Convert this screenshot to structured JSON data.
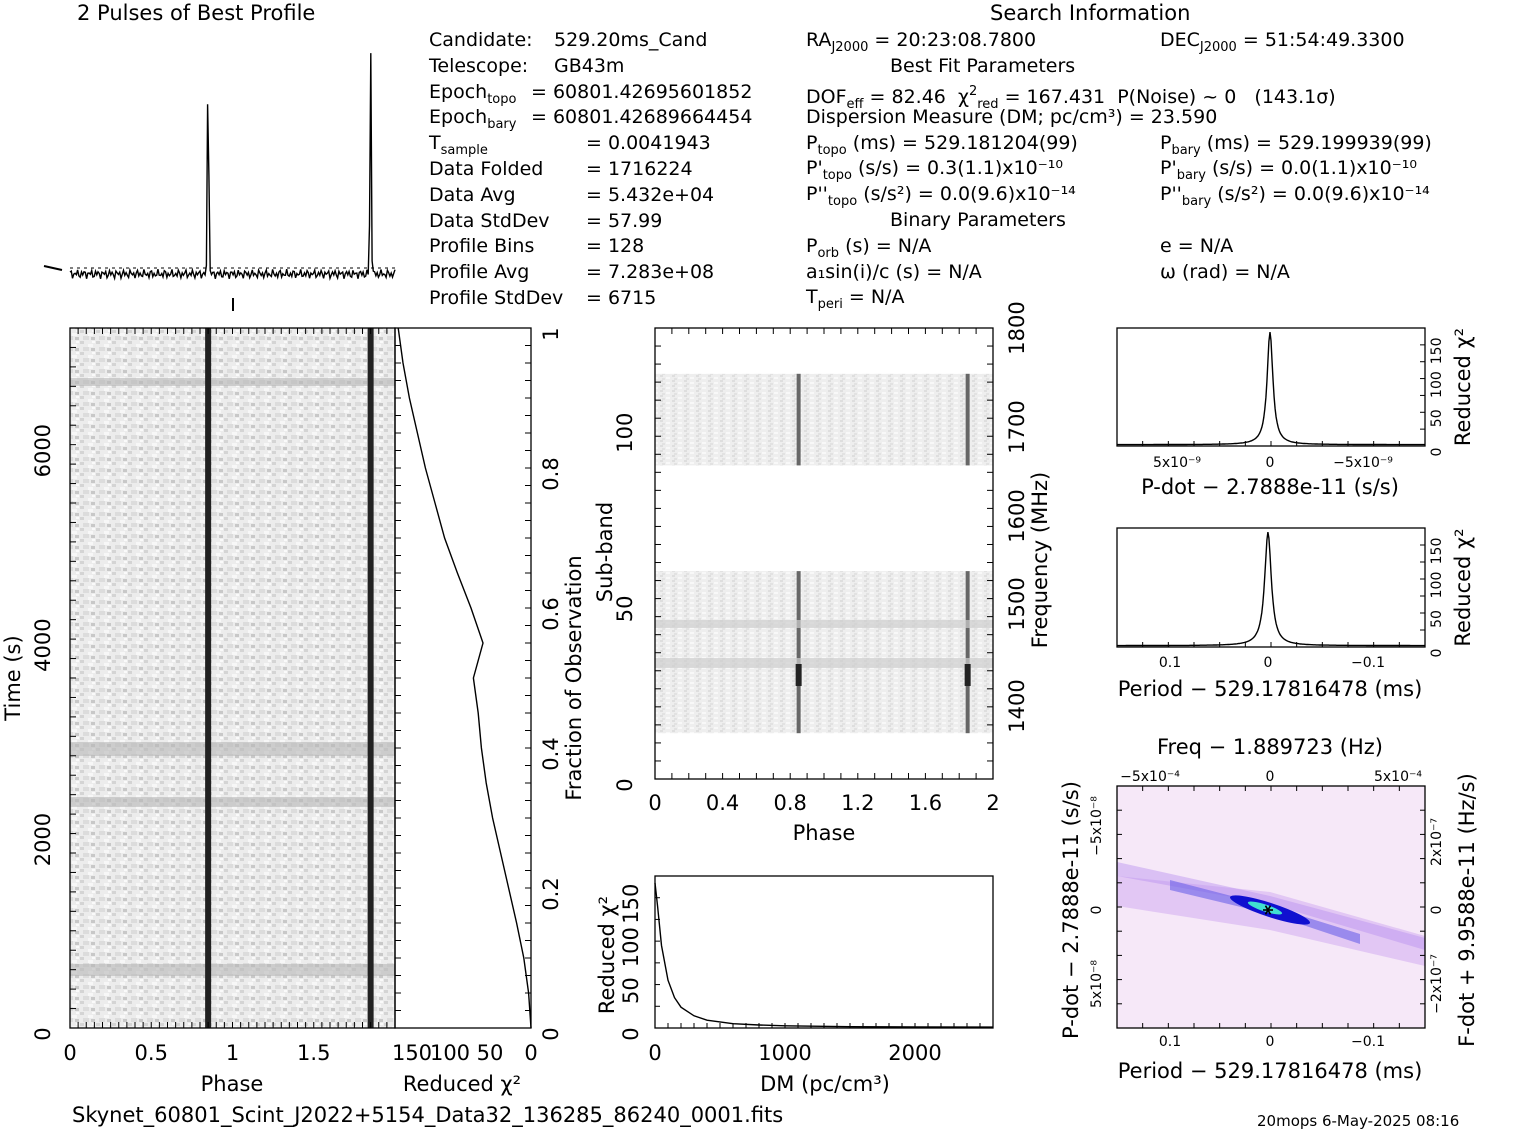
{
  "header": {
    "profile_title": "2 Pulses of Best Profile",
    "search_title": "Search Information",
    "best_fit_title": "Best Fit Parameters",
    "binary_title": "Binary Parameters"
  },
  "col1": [
    {
      "label": "Candidate:",
      "value": "529.20ms_Cand"
    },
    {
      "label": "Telescope:",
      "value": "GB43m"
    },
    {
      "label": "Epoch",
      "sub": "topo",
      "value": "= 60801.42695601852"
    },
    {
      "label": "Epoch",
      "sub": "bary",
      "value": "= 60801.42689664454"
    },
    {
      "label": "T",
      "sub": "sample",
      "value": "=   0.0041943"
    },
    {
      "label": "Data Folded",
      "value": "=   1716224"
    },
    {
      "label": "Data Avg",
      "value": "=   5.432e+04"
    },
    {
      "label": "Data StdDev",
      "value": "=   57.99"
    },
    {
      "label": "Profile Bins",
      "value": "=   128"
    },
    {
      "label": "Profile Avg",
      "value": "=   7.283e+08"
    },
    {
      "label": "Profile StdDev",
      "value": "=   6715"
    }
  ],
  "col2": {
    "ra": "= 20:23:08.7800",
    "dof": "= 82.46",
    "chi2": "= 167.431",
    "pnoise": "P(Noise) ~ 0",
    "sigma": "(143.1σ)",
    "dm": "Dispersion Measure (DM; pc/cm³) = 23.590",
    "ptopo": "(ms) =  529.181204(99)",
    "pdtopo": "(s/s) =  0.3(1.1)x10⁻¹⁰",
    "pddtopo": "(s/s²) = 0.0(9.6)x10⁻¹⁴",
    "porb": "(s) = N/A",
    "a1": "a₁sin(i)/c (s) = N/A",
    "tperi": "= N/A"
  },
  "col3": {
    "dec": "= 51:54:49.3300",
    "pbary": "(ms) =  529.199939(99)",
    "pdbary": "(s/s) = 0.0(1.1)x10⁻¹⁰",
    "pddbary": "(s/s²) = 0.0(9.6)x10⁻¹⁴",
    "e": "e = N/A",
    "omega": "ω (rad) = N/A"
  },
  "footer": {
    "filename": "Skynet_60801_Scint_J2022+5154_Data32_136285_86240_0001.fits",
    "stamp": "20mops   6-May-2025 08:16"
  },
  "colors": {
    "cmap_low": "#ffffff",
    "cmap_mid": "#c9a0f0",
    "cmap_high": "#1010d0",
    "cmap_peak": "#40e0d0"
  },
  "chart_data": [
    {
      "type": "line",
      "title": "2 Pulses of Best Profile",
      "xlabel": "Phase",
      "ylabel": "",
      "xlim": [
        0,
        2
      ],
      "peaks_at_phase": [
        0.85,
        1.85
      ],
      "baseline": 0.06,
      "peak_value": 1.0
    },
    {
      "type": "heatmap",
      "title": "",
      "xlabel": "Phase",
      "ylabel": "Time (s)",
      "xlim": [
        0,
        2
      ],
      "ylim": [
        0,
        7200
      ],
      "x_ticks": [
        "0",
        "0.5",
        "1",
        "1.5"
      ],
      "y_ticks": [
        "0",
        "2000",
        "4000",
        "6000"
      ],
      "pulse_phases": [
        0.85,
        1.85
      ]
    },
    {
      "type": "line",
      "title": "",
      "xlabel": "Reduced χ²",
      "ylabel": "Fraction of Observation",
      "x_ticks": [
        "150",
        "100",
        "50",
        "0"
      ],
      "y_ticks": [
        "0",
        "0.2",
        "0.4",
        "0.6",
        "0.8",
        "1"
      ],
      "xlim": [
        170,
        0
      ],
      "ylim": [
        0,
        1
      ],
      "x": [
        0,
        3,
        9,
        18,
        28,
        38,
        48,
        56,
        62,
        66,
        72,
        60,
        75,
        92,
        108,
        120,
        132,
        142,
        152,
        160,
        166
      ],
      "y": [
        0,
        0.05,
        0.1,
        0.15,
        0.2,
        0.25,
        0.3,
        0.35,
        0.4,
        0.45,
        0.5,
        0.55,
        0.6,
        0.65,
        0.7,
        0.75,
        0.8,
        0.85,
        0.9,
        0.95,
        1.0
      ]
    },
    {
      "type": "heatmap",
      "title": "",
      "xlabel": "Phase",
      "ylabel": "Sub-band",
      "y2label": "Frequency (MHz)",
      "xlim": [
        0,
        2
      ],
      "ylim": [
        0,
        128
      ],
      "x_ticks": [
        "0",
        "0.4",
        "0.8",
        "1.2",
        "1.6",
        "2"
      ],
      "y_ticks": [
        "0",
        "50",
        "100"
      ],
      "y2_ticks": [
        "1400",
        "1500",
        "1600",
        "1700",
        "1800"
      ],
      "populated_subbands": [
        [
          13,
          59
        ],
        [
          89,
          115
        ]
      ],
      "pulse_phases": [
        0.85,
        1.85
      ]
    },
    {
      "type": "line",
      "title": "",
      "xlabel": "DM (pc/cm³)",
      "ylabel": "Reduced χ²",
      "xlim": [
        0,
        2600
      ],
      "ylim": [
        0,
        175
      ],
      "x_ticks": [
        "0",
        "1000",
        "2000"
      ],
      "y_ticks": [
        "0",
        "50",
        "100",
        "150"
      ],
      "x": [
        0,
        20,
        50,
        100,
        150,
        200,
        300,
        400,
        600,
        800,
        1000,
        1500,
        2000,
        2600
      ],
      "y": [
        167,
        140,
        95,
        55,
        35,
        24,
        14,
        9,
        5,
        3.5,
        2.5,
        1.5,
        1.1,
        1
      ]
    },
    {
      "type": "line",
      "title": "",
      "xlabel": "P-dot − 2.7888e-11 (s/s)",
      "ylabel": "Reduced χ²",
      "x_ticks": [
        "5x10⁻⁹",
        "0",
        "−5x10⁻⁹"
      ],
      "y_ticks": [
        "0",
        "50",
        "100",
        "150"
      ],
      "ylim": [
        0,
        175
      ],
      "peak_x": 0,
      "peak_y": 167
    },
    {
      "type": "line",
      "title": "",
      "xlabel": "Period − 529.17816478 (ms)",
      "ylabel": "Reduced χ²",
      "x_ticks": [
        "0.1",
        "0",
        "−0.1"
      ],
      "y_ticks": [
        "0",
        "50",
        "100",
        "150"
      ],
      "ylim": [
        0,
        175
      ],
      "peak_x": 0.003,
      "peak_y": 167
    },
    {
      "type": "heatmap",
      "title": "Freq − 1.889723 (Hz)",
      "xlabel": "Period − 529.17816478 (ms)",
      "ylabel": "P-dot − 2.7888e-11 (s/s)",
      "y2label": "F-dot + 9.9588e-11 (Hz/s)",
      "x_ticks": [
        "0.1",
        "0",
        "−0.1"
      ],
      "x2_ticks": [
        "−5x10⁻⁴",
        "0",
        "5x10⁻⁴"
      ],
      "y_ticks": [
        "−5x10⁻⁸",
        "0",
        "5x10⁻⁸"
      ],
      "y2_ticks": [
        "2x10⁻⁷",
        "0",
        "−2x10⁻⁷"
      ],
      "best_x": 0,
      "best_y": 0
    }
  ]
}
